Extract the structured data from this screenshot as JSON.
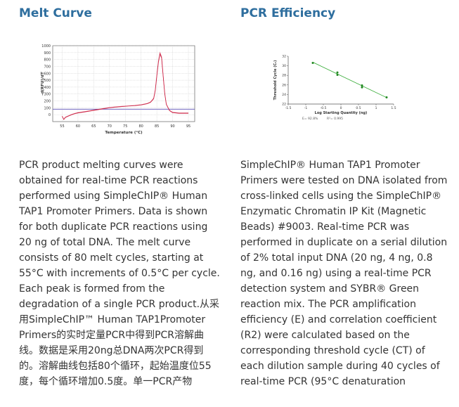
{
  "melt": {
    "heading": "Melt Curve",
    "description": "PCR product melting curves were obtained for real-time PCR reactions performed using SimpleChIP® Human TAP1 Promoter Primers. Data is shown for both duplicate PCR reactions using 20 ng of total DNA. The melt curve consists of 80 melt cycles, starting at 55°C with increments of 0.5°C per cycle. Each peak is formed from the degradation of a single PCR product.从采用SimpleChIP™ Human TAP1Promoter Primers的实时定量PCR中得到PCR溶解曲线。数据是采用20ng总DNA两次PCR得到的。溶解曲线包括80个循环，起始温度位55度，每个循环增加0.5度。单一PCR产物"
  },
  "efficiency": {
    "heading": "PCR Efficiency",
    "description": "SimpleChIP® Human TAP1 Promoter Primers were tested on DNA isolated from cross-linked cells using the SimpleChIP® Enzymatic Chromatin IP Kit (Magnetic Beads) #9003. Real-time PCR was performed in duplicate on a serial dilution of 2% total input DNA (20 ng, 4 ng, 0.8 ng, and 0.16 ng) using a real-time PCR detection system and SYBR® Green reaction mix. The PCR amplification efficiency (E) and correlation coefficient (R2) were calculated based on the corresponding threshold cycle (CT) of each dilution sample during 40 cycles of real-time PCR (95°C denaturation"
  },
  "colors": {
    "heading": "#2e6e9e",
    "melt_line": "#cc2244",
    "threshold_line": "#5a4fb5",
    "efficiency_line": "#33aa33",
    "efficiency_point": "#228822",
    "grid": "#bbbbbb",
    "text": "#333333"
  },
  "chart_data": [
    {
      "type": "line",
      "xlabel": "Temperature (°C)",
      "ylabel": "-d(RFU)/dT",
      "xlim": [
        52,
        97
      ],
      "ylim": [
        -100,
        1000
      ],
      "xticks": [
        55,
        60,
        65,
        70,
        75,
        80,
        85,
        90,
        95
      ],
      "yticks": [
        0,
        100,
        200,
        300,
        400,
        500,
        600,
        700,
        800,
        900,
        1000
      ],
      "grid": true,
      "threshold": 80,
      "series": [
        {
          "x": [
            55,
            55.5,
            56,
            57,
            58,
            59,
            60,
            62,
            64,
            66,
            68,
            70,
            72,
            74,
            76,
            78,
            80,
            82,
            83,
            84,
            84.5,
            85,
            85.5,
            86,
            86.5,
            87,
            87.5,
            88,
            89,
            90,
            92,
            95
          ],
          "y": [
            -20,
            -70,
            -40,
            -20,
            0,
            15,
            25,
            40,
            55,
            70,
            85,
            100,
            110,
            118,
            125,
            130,
            140,
            160,
            180,
            230,
            350,
            560,
            760,
            880,
            820,
            560,
            300,
            150,
            60,
            30,
            20,
            20
          ]
        },
        {
          "x": [
            55,
            55.5,
            56,
            57,
            58,
            59,
            60,
            62,
            64,
            66,
            68,
            70,
            72,
            74,
            76,
            78,
            80,
            82,
            83,
            84,
            84.5,
            85,
            85.5,
            86,
            86.5,
            87,
            87.5,
            88,
            89,
            90,
            92,
            95
          ],
          "y": [
            -25,
            -65,
            -35,
            -15,
            5,
            20,
            30,
            45,
            60,
            75,
            90,
            105,
            115,
            122,
            128,
            135,
            145,
            165,
            185,
            240,
            360,
            570,
            780,
            900,
            840,
            570,
            310,
            155,
            65,
            35,
            25,
            25
          ]
        }
      ]
    },
    {
      "type": "scatter",
      "xlabel": "Log Starting Quantity (ng)",
      "ylabel": "Threshold Cycle (Cₜ)",
      "xlim": [
        -1.5,
        1.5
      ],
      "ylim": [
        22,
        32
      ],
      "xticks": [
        -1.5,
        -1,
        -0.5,
        0,
        0.5,
        1,
        1.5
      ],
      "yticks": [
        22,
        24,
        26,
        28,
        30,
        32
      ],
      "annotations": [
        "E= 92.8%",
        "R²= 0.995"
      ],
      "points": [
        {
          "x": -0.8,
          "y": 30.6
        },
        {
          "x": -0.1,
          "y": 28.6
        },
        {
          "x": -0.1,
          "y": 28.1
        },
        {
          "x": 0.6,
          "y": 25.9
        },
        {
          "x": 0.6,
          "y": 25.5
        },
        {
          "x": 1.3,
          "y": 23.4
        }
      ],
      "fit": {
        "x": [
          -0.8,
          1.3
        ],
        "y": [
          30.75,
          23.35
        ]
      }
    }
  ]
}
